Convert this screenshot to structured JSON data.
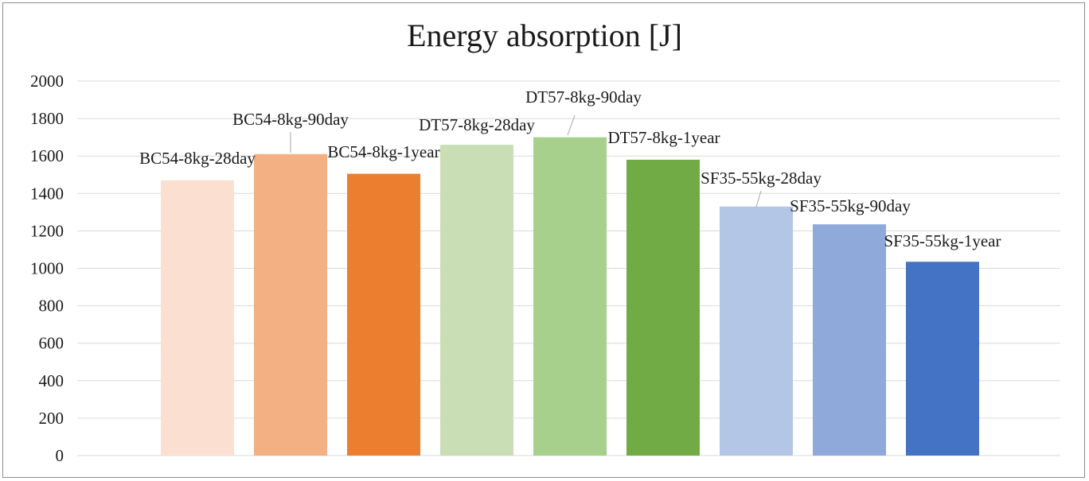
{
  "chart_data": {
    "type": "bar",
    "title": "Energy absorption [J]",
    "xlabel": "",
    "ylabel": "",
    "ylim": [
      0,
      2000
    ],
    "yticks": [
      0,
      200,
      400,
      600,
      800,
      1000,
      1200,
      1400,
      1600,
      1800,
      2000
    ],
    "grid": true,
    "legend": "none",
    "categories": [
      "BC54-8kg-28day",
      "BC54-8kg-90day",
      "BC54-8kg-1year",
      "DT57-8kg-28day",
      "DT57-8kg-90day",
      "DT57-8kg-1year",
      "SF35-55kg-28day",
      "SF35-55kg-90day",
      "SF35-55kg-1year"
    ],
    "values": [
      1470,
      1610,
      1505,
      1660,
      1700,
      1580,
      1330,
      1235,
      1035
    ],
    "colors": [
      "#FBE0D1",
      "#F2B083",
      "#EC7E30",
      "#C9DEB5",
      "#A8D08D",
      "#71AB45",
      "#B4C6E6",
      "#8FA9DB",
      "#4472C4"
    ],
    "data_labels": [
      "BC54-8kg-28day",
      "BC54-8kg-90day",
      "BC54-8kg-1year",
      "DT57-8kg-28day",
      "DT57-8kg-90day",
      "DT57-8kg-1year",
      "SF35-55kg-28day",
      "SF35-55kg-90day",
      "SF35-55kg-1year"
    ]
  }
}
